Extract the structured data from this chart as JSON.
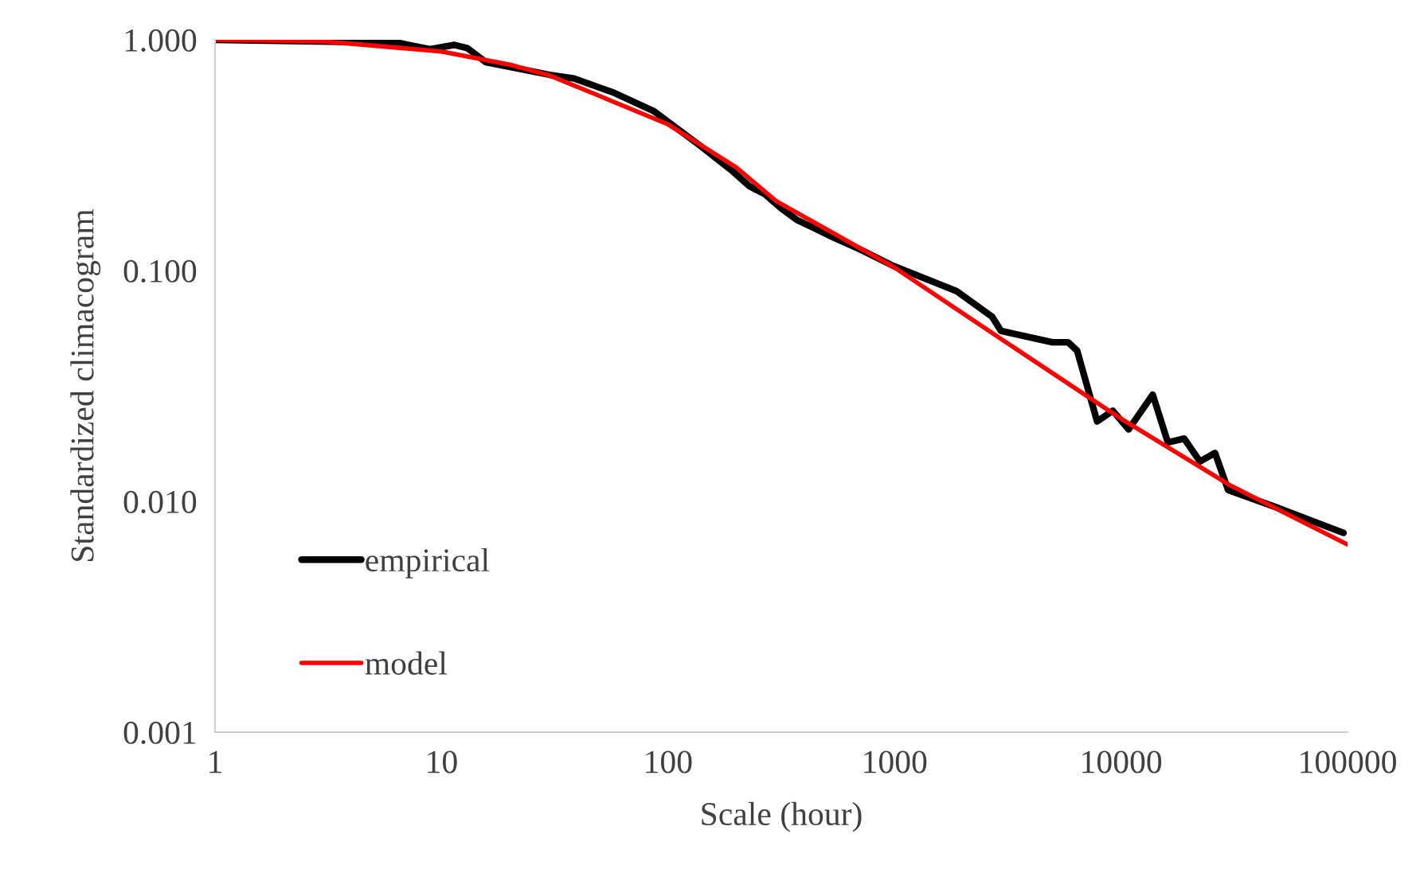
{
  "chart_data": {
    "type": "line",
    "xlabel": "Scale (hour)",
    "ylabel": "Standardized climacogram",
    "log": "xy",
    "grid": false,
    "legend": "bottom left",
    "marker": "none",
    "line_style": "solid",
    "xlim": [
      1,
      100000
    ],
    "xticks": [
      1,
      10,
      100,
      1000,
      10000,
      100000
    ],
    "ylim": [
      0.001,
      1
    ],
    "yticks": [
      {
        "value": 0.001,
        "label": "0.001"
      },
      {
        "value": 0.01,
        "label": "0.010"
      },
      {
        "value": 0.1,
        "label": "0.100"
      },
      {
        "value": 1,
        "label": "1.000"
      }
    ],
    "series": [
      {
        "name": "empirical",
        "color": "#000000",
        "x": [
          1,
          2.87,
          6.45,
          8.9,
          11.4,
          13,
          15.7,
          30,
          38.5,
          57.6,
          86.7,
          140,
          194,
          229,
          268,
          316,
          370,
          514,
          712,
          983,
          1880,
          2700,
          2950,
          4980,
          5840,
          6400,
          7840,
          9200,
          10800,
          13800,
          16100,
          19000,
          22300,
          26000,
          29700,
          47400,
          96000
        ],
        "values": [
          1.0,
          0.984,
          0.97,
          0.91,
          0.95,
          0.92,
          0.8,
          0.705,
          0.68,
          0.59,
          0.49,
          0.345,
          0.268,
          0.232,
          0.214,
          0.186,
          0.166,
          0.142,
          0.123,
          0.105,
          0.0815,
          0.063,
          0.0548,
          0.0489,
          0.0489,
          0.045,
          0.0222,
          0.0247,
          0.0205,
          0.029,
          0.018,
          0.0187,
          0.0149,
          0.0162,
          0.0112,
          0.0095,
          0.0073
        ]
      },
      {
        "name": "model",
        "color": "#ff0000",
        "x": [
          1,
          3,
          10,
          20,
          30,
          50,
          100,
          200,
          300,
          1000,
          3000,
          10000,
          30000,
          100000
        ],
        "values": [
          1.0,
          0.985,
          0.89,
          0.78,
          0.7,
          0.57,
          0.43,
          0.28,
          0.2,
          0.103,
          0.05,
          0.0228,
          0.0118,
          0.0065
        ]
      }
    ]
  }
}
